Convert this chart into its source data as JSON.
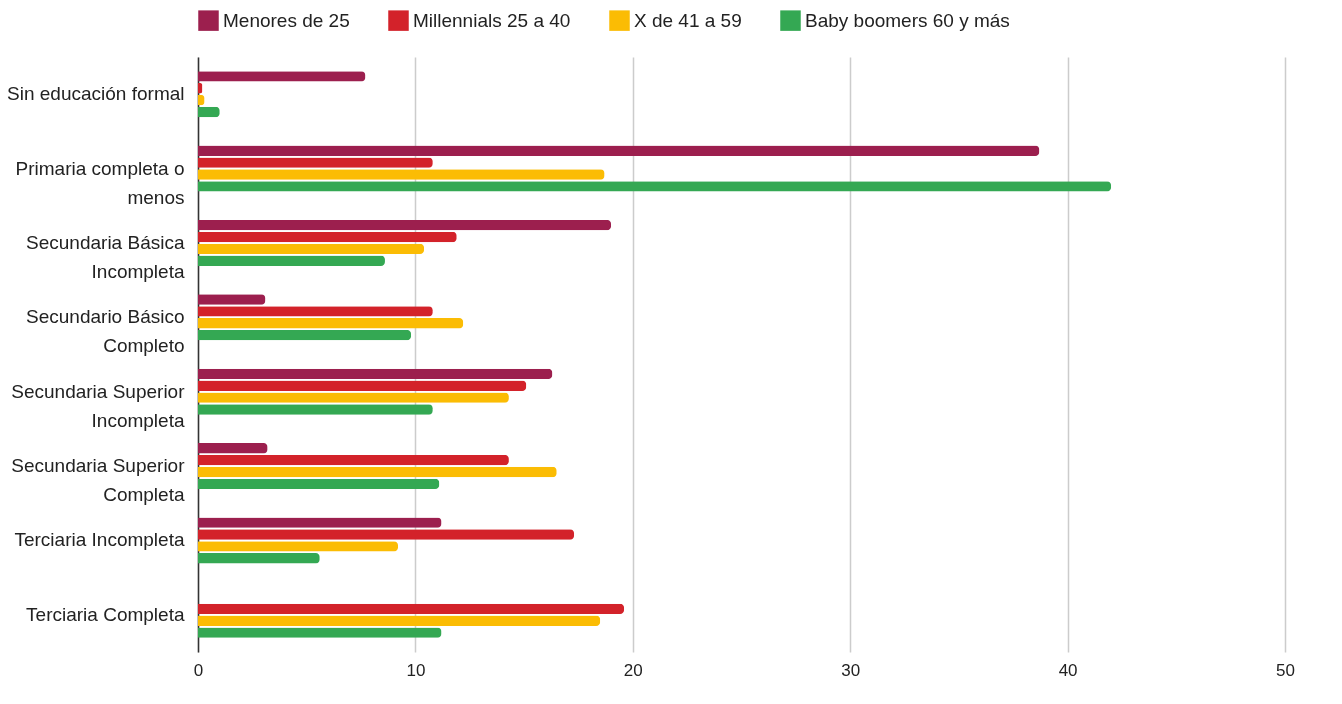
{
  "chart_data": {
    "type": "bar",
    "orientation": "horizontal",
    "categories": [
      "Sin educación formal",
      "Primaria completa o menos",
      "Secundaria Básica Incompleta",
      "Secundario Básico Completo",
      "Secundaria Superior Incompleta",
      "Secundaria Superior Completa",
      "Terciaria Incompleta",
      "Terciaria Completa"
    ],
    "series": [
      {
        "name": "Menores de 25",
        "color": "#9c1f4e",
        "values": [
          7.7,
          38.7,
          19.0,
          3.1,
          16.3,
          3.2,
          11.2,
          null
        ]
      },
      {
        "name": "Millennials 25 a 40",
        "color": "#d3222a",
        "values": [
          0.2,
          10.8,
          11.9,
          10.8,
          15.1,
          14.3,
          17.3,
          19.6
        ]
      },
      {
        "name": "X de 41 a 59",
        "color": "#fbbc04",
        "values": [
          0.3,
          18.7,
          10.4,
          12.2,
          14.3,
          16.5,
          9.2,
          18.5
        ]
      },
      {
        "name": "Baby boomers 60 y más",
        "color": "#34a853",
        "values": [
          1.0,
          42.0,
          8.6,
          9.8,
          10.8,
          11.1,
          5.6,
          11.2
        ]
      }
    ],
    "xlim": [
      0,
      50
    ],
    "xticks": [
      0,
      10,
      20,
      30,
      40,
      50
    ],
    "grid": "x",
    "legend": "top"
  }
}
